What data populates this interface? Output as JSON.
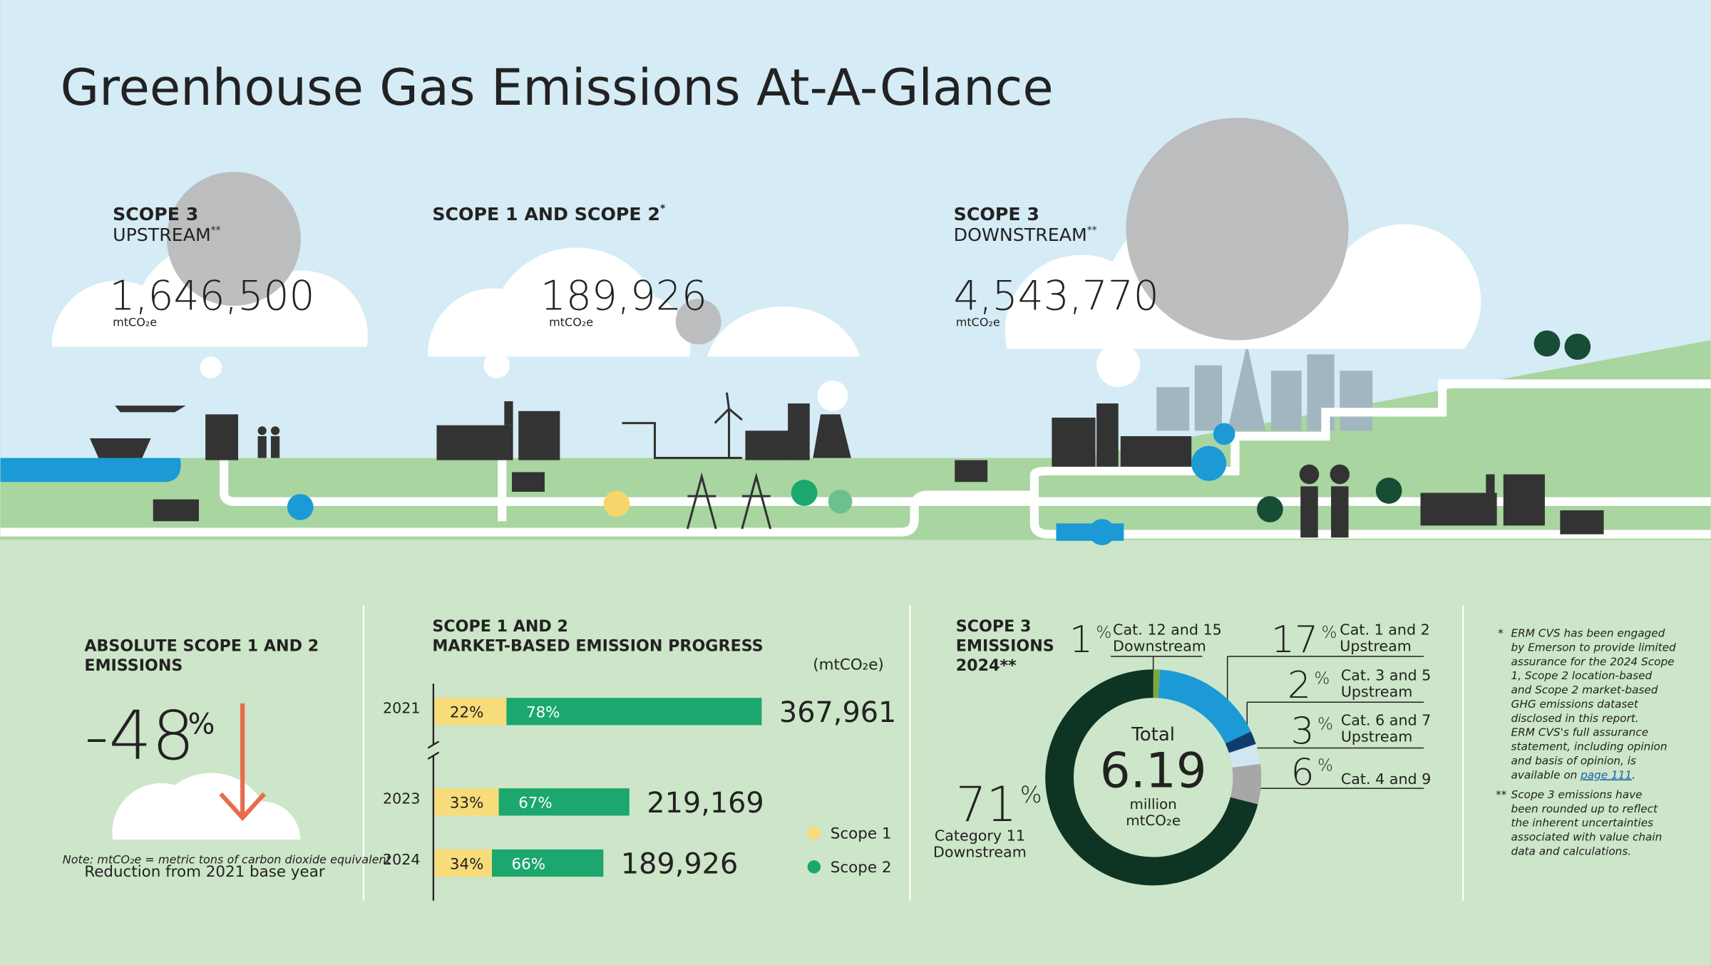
{
  "header": {
    "title": "Greenhouse Gas Emissions At-A-Glance"
  },
  "scopes": [
    {
      "title": "SCOPE 3",
      "subtitle": "UPSTREAM",
      "mark": "**",
      "value": 1646500,
      "value_label": "1,646,500",
      "unit": "mtCO₂e"
    },
    {
      "title": "SCOPE 1 AND SCOPE 2",
      "subtitle": null,
      "mark": "*",
      "value": 189926,
      "value_label": "189,926",
      "unit": "mtCO₂e"
    },
    {
      "title": "SCOPE 3",
      "subtitle": "DOWNSTREAM",
      "mark": "**",
      "value": 4543770,
      "value_label": "4,543,770",
      "unit": "mtCO₂e"
    }
  ],
  "reduction": {
    "title_lines": [
      "ABSOLUTE SCOPE 1 AND 2",
      "EMISSIONS"
    ],
    "value": "-48",
    "percent_sign": "%",
    "note": "Note: mtCO₂e = metric tons of carbon dioxide equivalent",
    "caption": "Reduction from 2021 base year"
  },
  "progress": {
    "title_lines": [
      "SCOPE 1 AND 2",
      "MARKET-BASED EMISSION PROGRESS"
    ],
    "unit": "(mtCO₂e)",
    "legend": [
      "Scope 1",
      "Scope 2"
    ],
    "colors": [
      "#f8dc7a",
      "#1ba76d"
    ],
    "rows": [
      {
        "year": "2021",
        "scope1": 22,
        "scope1_label": "22%",
        "scope2": 78,
        "scope2_label": "78%",
        "total": 367961,
        "total_label": "367,961"
      },
      {
        "year": "2023",
        "scope1": 33,
        "scope1_label": "33%",
        "scope2": 67,
        "scope2_label": "67%",
        "total": 219169,
        "total_label": "219,169"
      },
      {
        "year": "2024",
        "scope1": 34,
        "scope1_label": "34%",
        "scope2": 66,
        "scope2_label": "66%",
        "total": 189926,
        "total_label": "189,926"
      }
    ]
  },
  "scope3": {
    "title_lines": [
      "SCOPE 3",
      "EMISSIONS",
      "2024**"
    ],
    "percent_sign": "%",
    "total": {
      "label": "Total",
      "value": 6.19,
      "unit_lines": [
        "million",
        "mtCO₂e"
      ]
    },
    "categories": [
      {
        "value": 1,
        "lines": [
          "Cat. 12 and 15",
          "Downstream"
        ],
        "color": "#7fa63e"
      },
      {
        "value": 17,
        "lines": [
          "Cat. 1 and 2",
          "Upstream"
        ],
        "color": "#1b9ad6"
      },
      {
        "value": 2,
        "lines": [
          "Cat. 3 and 5",
          "Upstream"
        ],
        "color": "#0f3e6c"
      },
      {
        "value": 3,
        "lines": [
          "Cat. 6 and 7",
          "Upstream"
        ],
        "color": "#cfe7f1"
      },
      {
        "value": 6,
        "lines": [
          "Cat. 4 and 9"
        ],
        "color": "#a7a7a7"
      },
      {
        "value": 71,
        "lines": [
          "Category 11",
          "Downstream"
        ],
        "color": "#0e3424"
      }
    ]
  },
  "footnotes": [
    {
      "marker": "*",
      "lines": [
        "ERM CVS has been engaged",
        "by Emerson to provide limited",
        "assurance for the 2024 Scope",
        "1, Scope 2 location-based",
        "and Scope 2 market-based",
        "GHG emissions dataset",
        "disclosed in this report.",
        "ERM CVS's full assurance",
        "statement, including opinion",
        "and basis of opinion, is"
      ],
      "link_prefix": "available on",
      "link": "page 111",
      "link_suffix": "."
    },
    {
      "marker": "**",
      "lines": [
        "Scope 3 emissions have",
        "been rounded up to reflect",
        "the inherent uncertainties",
        "associated with value chain",
        "data and calculations."
      ]
    }
  ]
}
